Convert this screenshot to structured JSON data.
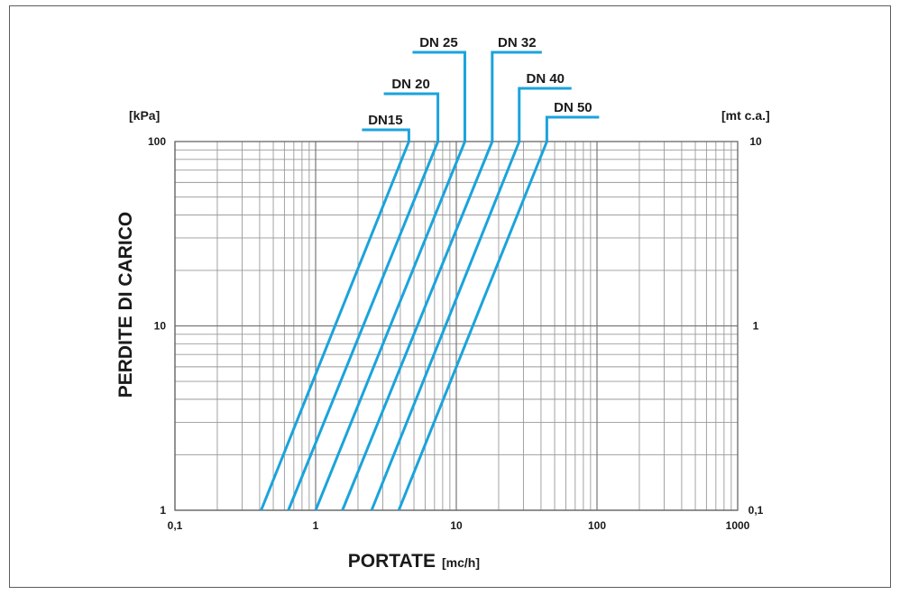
{
  "chart_data": {
    "type": "line",
    "x_scale": "log",
    "y_scale": "log",
    "xlim": [
      0.1,
      1000
    ],
    "ylim": [
      1,
      100
    ],
    "y2lim": [
      0.1,
      10
    ],
    "grid": true,
    "xlabel": "PORTATE",
    "xlabel_unit": "[mc/h]",
    "ylabel": "PERDITE DI CARICO",
    "ylabel_unit": "[kPa]",
    "y2label_unit": "[mt c.a.]",
    "x_tick_labels": [
      "0,1",
      "1",
      "10",
      "100",
      "1000"
    ],
    "y_tick_labels": [
      "1",
      "10",
      "100"
    ],
    "y2_tick_labels": [
      "0,1",
      "1",
      "10"
    ],
    "series_color": "#1ba3dc",
    "series": [
      {
        "name": "DN15",
        "x": [
          0.41,
          4.6
        ],
        "y": [
          1,
          100
        ]
      },
      {
        "name": "DN 20",
        "x": [
          0.64,
          7.4
        ],
        "y": [
          1,
          100
        ]
      },
      {
        "name": "DN 25",
        "x": [
          1.0,
          11.5
        ],
        "y": [
          1,
          100
        ]
      },
      {
        "name": "DN 32",
        "x": [
          1.55,
          18
        ],
        "y": [
          1,
          100
        ]
      },
      {
        "name": "DN 40",
        "x": [
          2.5,
          28
        ],
        "y": [
          1,
          100
        ]
      },
      {
        "name": "DN 50",
        "x": [
          3.9,
          44
        ],
        "y": [
          1,
          100
        ]
      }
    ]
  }
}
